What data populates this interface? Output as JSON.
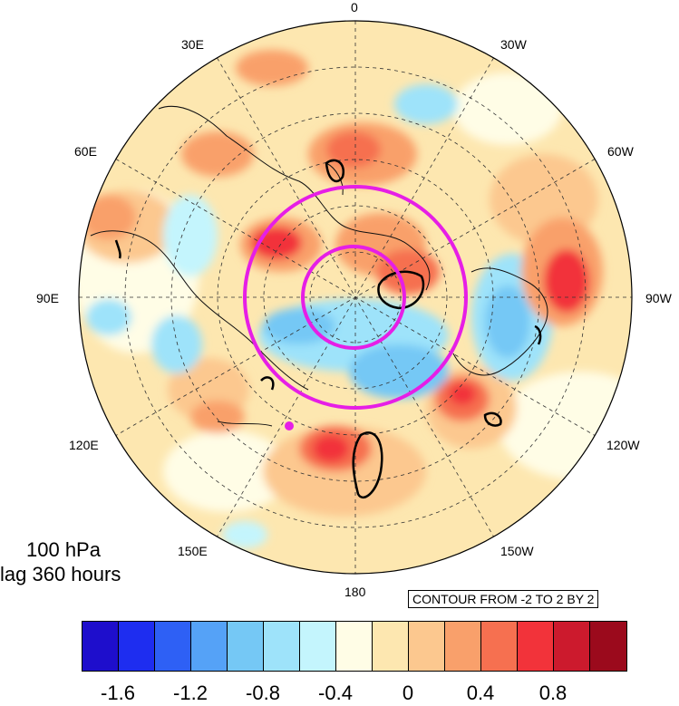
{
  "lon_labels": {
    "l0": "0",
    "l30e": "30E",
    "l30w": "30W",
    "l60e": "60E",
    "l60w": "60W",
    "l90e": "90E",
    "l90w": "90W",
    "l120e": "120E",
    "l120w": "120W",
    "l150e": "150E",
    "l150w": "150W",
    "l180": "180"
  },
  "caption": {
    "level": "100 hPa",
    "lag": "lag 360 hours"
  },
  "contour_info": "CONTOUR FROM -2 TO 2 BY 2",
  "colorbar": {
    "colors": [
      "#1e0ecc",
      "#1e2df0",
      "#2e60f5",
      "#55a2f7",
      "#75c8f5",
      "#9ee3fa",
      "#c4f5fd",
      "#fffde6",
      "#fde7b0",
      "#fcc88f",
      "#f9a06b",
      "#f67050",
      "#f2333a",
      "#cc1a2d",
      "#9b0a1c"
    ],
    "tick_labels": [
      "-1.6",
      "-1.2",
      "-0.8",
      "-0.4",
      "0",
      "0.4",
      "0.8"
    ]
  },
  "overlay": {
    "outer_circle_color": "#e61ee6",
    "inner_circle_color": "#e61ee6",
    "marker_color": "#e61ee6"
  }
}
